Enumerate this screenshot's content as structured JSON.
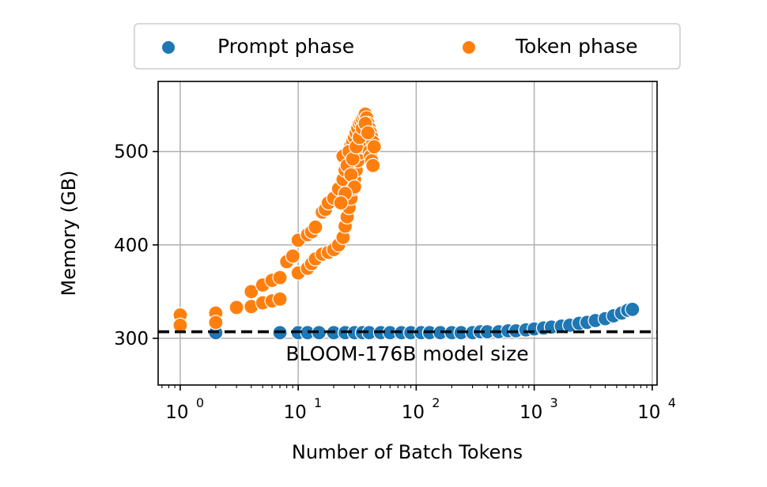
{
  "chart_data": {
    "type": "scatter",
    "xlabel": "Number of Batch Tokens",
    "ylabel": "Memory (GB)",
    "x_scale": "log",
    "xlim": [
      0.65,
      11000
    ],
    "ylim": [
      250,
      575
    ],
    "x_ticks": [
      1,
      10,
      100,
      1000,
      10000
    ],
    "x_tick_labels": [
      {
        "base": "10",
        "exp": "0"
      },
      {
        "base": "10",
        "exp": "1"
      },
      {
        "base": "10",
        "exp": "2"
      },
      {
        "base": "10",
        "exp": "3"
      },
      {
        "base": "10",
        "exp": "4"
      }
    ],
    "y_ticks": [
      300,
      400,
      500
    ],
    "y_tick_labels": [
      "300",
      "400",
      "500"
    ],
    "grid": true,
    "legend_position": "top-center",
    "colors": {
      "prompt": "#1f77b4",
      "token": "#ff7f0e",
      "reference": "#000000"
    },
    "reference_line": {
      "y": 307,
      "label": "BLOOM-176B model size",
      "style": "dashed"
    },
    "series": [
      {
        "name": "Prompt phase",
        "color": "#1f77b4",
        "points": [
          [
            2,
            306
          ],
          [
            7,
            306
          ],
          [
            10,
            306
          ],
          [
            12,
            306
          ],
          [
            15,
            306
          ],
          [
            20,
            306
          ],
          [
            25,
            306
          ],
          [
            30,
            306
          ],
          [
            35,
            306
          ],
          [
            40,
            306
          ],
          [
            50,
            306
          ],
          [
            60,
            306
          ],
          [
            75,
            306
          ],
          [
            90,
            306
          ],
          [
            110,
            306
          ],
          [
            130,
            306
          ],
          [
            160,
            306
          ],
          [
            200,
            306
          ],
          [
            240,
            306
          ],
          [
            300,
            306
          ],
          [
            350,
            307
          ],
          [
            400,
            307
          ],
          [
            500,
            307
          ],
          [
            600,
            308
          ],
          [
            700,
            308
          ],
          [
            850,
            309
          ],
          [
            1000,
            310
          ],
          [
            1200,
            311
          ],
          [
            1400,
            312
          ],
          [
            1700,
            313
          ],
          [
            2000,
            314
          ],
          [
            2400,
            316
          ],
          [
            2800,
            317
          ],
          [
            3300,
            319
          ],
          [
            4000,
            321
          ],
          [
            4700,
            324
          ],
          [
            5500,
            327
          ],
          [
            6200,
            330
          ],
          [
            6800,
            331
          ]
        ]
      },
      {
        "name": "Token phase",
        "color": "#ff7f0e",
        "points": [
          [
            1,
            325
          ],
          [
            1,
            314
          ],
          [
            2,
            327
          ],
          [
            2,
            317
          ],
          [
            3,
            333
          ],
          [
            4,
            350
          ],
          [
            4,
            334
          ],
          [
            5,
            357
          ],
          [
            5,
            338
          ],
          [
            6,
            362
          ],
          [
            6,
            340
          ],
          [
            7,
            365
          ],
          [
            7,
            342
          ],
          [
            8,
            382
          ],
          [
            9,
            388
          ],
          [
            10,
            405
          ],
          [
            10,
            370
          ],
          [
            12,
            411
          ],
          [
            12,
            375
          ],
          [
            13,
            414
          ],
          [
            13,
            380
          ],
          [
            14,
            419
          ],
          [
            14,
            385
          ],
          [
            16,
            435
          ],
          [
            16,
            390
          ],
          [
            17,
            438
          ],
          [
            18,
            445
          ],
          [
            18,
            392
          ],
          [
            20,
            450
          ],
          [
            20,
            395
          ],
          [
            22,
            460
          ],
          [
            22,
            400
          ],
          [
            24,
            470
          ],
          [
            24,
            408
          ],
          [
            25,
            480
          ],
          [
            25,
            420
          ],
          [
            26,
            490
          ],
          [
            26,
            430
          ],
          [
            27,
            500
          ],
          [
            27,
            440
          ],
          [
            28,
            507
          ],
          [
            28,
            450
          ],
          [
            29,
            510
          ],
          [
            29,
            460
          ],
          [
            30,
            515
          ],
          [
            30,
            470
          ],
          [
            31,
            520
          ],
          [
            31,
            480
          ],
          [
            32,
            525
          ],
          [
            32,
            490
          ],
          [
            33,
            530
          ],
          [
            33,
            498
          ],
          [
            34,
            532
          ],
          [
            34,
            505
          ],
          [
            35,
            535
          ],
          [
            35,
            510
          ],
          [
            36,
            538
          ],
          [
            36,
            515
          ],
          [
            37,
            540
          ],
          [
            37,
            520
          ],
          [
            38,
            536
          ],
          [
            38,
            512
          ],
          [
            39,
            530
          ],
          [
            39,
            505
          ],
          [
            40,
            525
          ],
          [
            40,
            500
          ],
          [
            41,
            520
          ],
          [
            41,
            495
          ],
          [
            42,
            515
          ],
          [
            42,
            490
          ],
          [
            43,
            510
          ],
          [
            43,
            485
          ],
          [
            44,
            505
          ],
          [
            24,
            495
          ],
          [
            26,
            485
          ],
          [
            28,
            475
          ],
          [
            30,
            462
          ],
          [
            25,
            455
          ],
          [
            23,
            445
          ],
          [
            27,
            500
          ],
          [
            29,
            492
          ],
          [
            31,
            505
          ],
          [
            33,
            515
          ],
          [
            35,
            525
          ],
          [
            37,
            530
          ],
          [
            39,
            520
          ]
        ]
      }
    ]
  }
}
